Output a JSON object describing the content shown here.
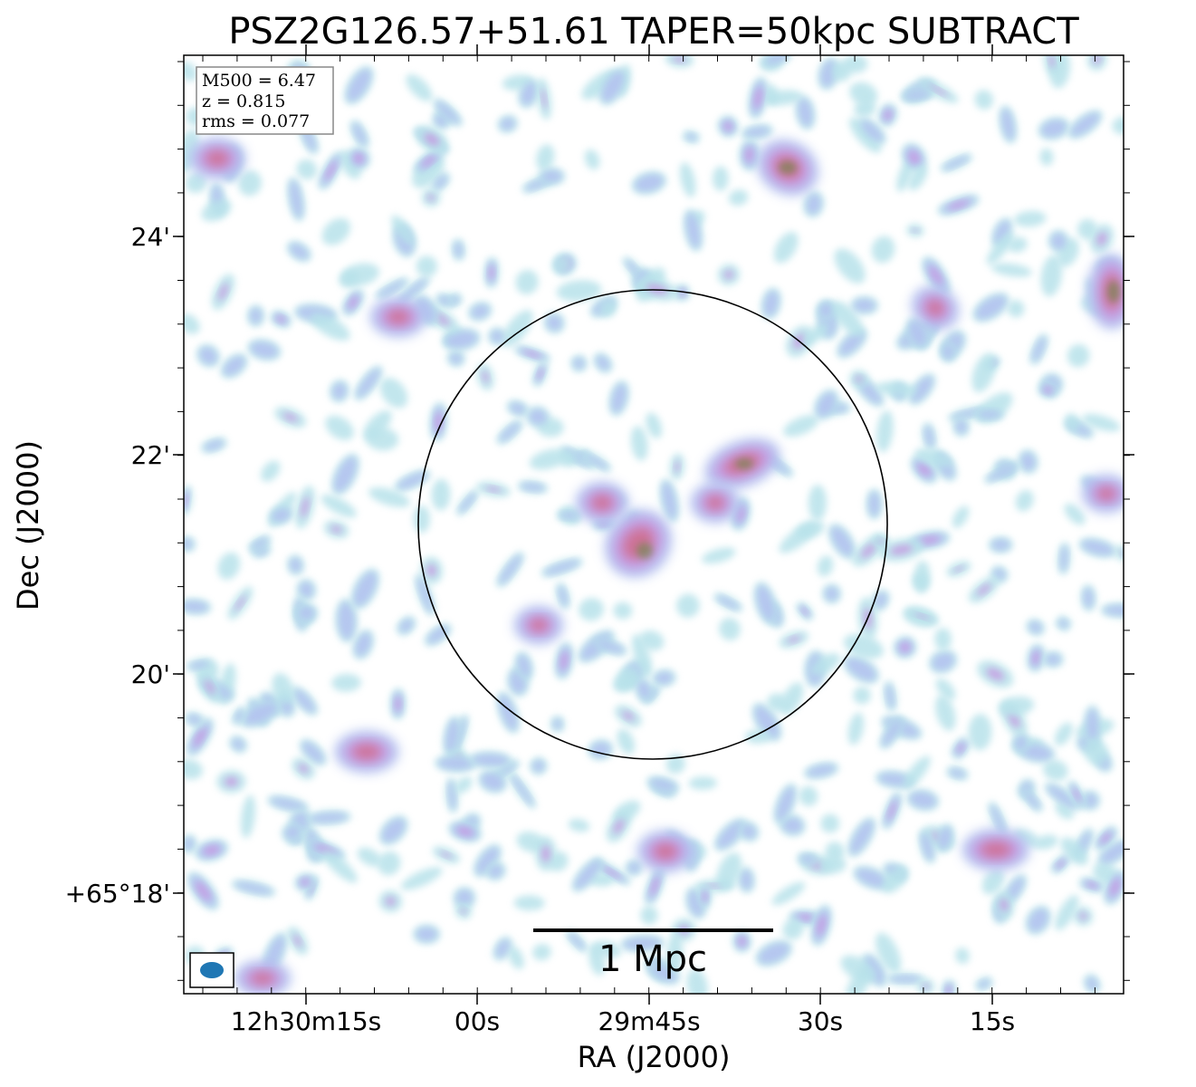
{
  "figure": {
    "title": "PSZ2G126.57+51.61 TAPER=50kpc SUBTRACT",
    "xlabel": "RA (J2000)",
    "ylabel": "Dec (J2000)",
    "x_ticks": [
      "12h30m15s",
      "00s",
      "29m45s",
      "30s",
      "15s"
    ],
    "y_ticks": [
      "24'",
      "22'",
      "20'",
      "+65°18'"
    ],
    "info_box": [
      "M500 = 6.47",
      "z = 0.815",
      "rms = 0.077"
    ],
    "scale_bar_label": "1 Mpc",
    "colors": {
      "faint": "#b8e2ea",
      "low": "#b4c3f0",
      "mid": "#c69ae2",
      "high": "#d06a8a",
      "peak": "#5f8a3c",
      "circle": "#000000",
      "beam": "#1f77b4"
    }
  }
}
